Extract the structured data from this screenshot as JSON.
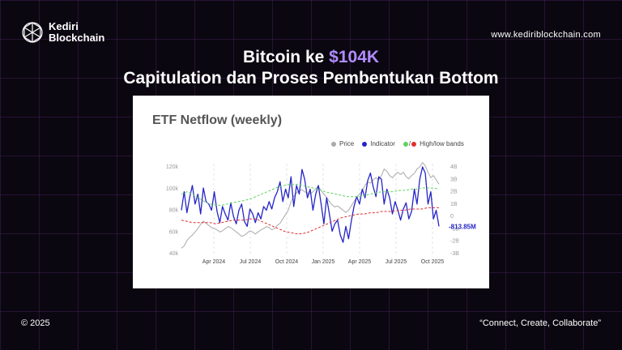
{
  "brand": {
    "name_line1": "Kediri",
    "name_line2": "Blockchain",
    "logo_icon": "network-sphere-icon",
    "url": "www.kediriblockchain.com"
  },
  "headline": {
    "line1_prefix": "Bitcoin ke ",
    "line1_accent": "$104K",
    "line2": "Capitulation dan Proses Pembentukan Bottom",
    "accent_color": "#b18cff"
  },
  "chart_card": {
    "title": "ETF Netflow (weekly)",
    "legend": [
      {
        "label": "Price",
        "color": "#aaaaaa"
      },
      {
        "label": "Indicator",
        "color": "#2525c8"
      },
      {
        "label": "High/low bands",
        "color": "#5fd35f",
        "color2": "#e03030",
        "separator": "/"
      }
    ],
    "last_value_label": "-813.85M"
  },
  "chart_data": {
    "type": "line",
    "x_ticks": [
      "Apr 2024",
      "Jul 2024",
      "Oct 2024",
      "Jan 2025",
      "Apr 2025",
      "Jul 2025",
      "Oct 2025"
    ],
    "y_left_ticks": [
      "120k",
      "100k",
      "80k",
      "60k",
      "40k"
    ],
    "y_left_range": [
      40000,
      120000
    ],
    "y_right_ticks": [
      "4B",
      "3B",
      "2B",
      "1B",
      "0",
      "-1B",
      "-2B",
      "-3B"
    ],
    "y_right_range": [
      -3,
      4
    ],
    "series": [
      {
        "name": "Price",
        "color": "#aaaaaa",
        "axis": "left",
        "values": [
          45000,
          47000,
          52000,
          55000,
          57000,
          60000,
          63000,
          67000,
          70000,
          68000,
          66000,
          64000,
          63000,
          62000,
          60000,
          61000,
          63000,
          65000,
          64000,
          62000,
          60000,
          58000,
          56000,
          57000,
          59000,
          61000,
          60000,
          58000,
          60000,
          62000,
          63000,
          65000,
          64000,
          62000,
          63000,
          66000,
          68000,
          72000,
          76000,
          80000,
          88000,
          93000,
          96000,
          98000,
          99000,
          97000,
          96000,
          95000,
          97000,
          100000,
          102000,
          98000,
          95000,
          92000,
          88000,
          85000,
          83000,
          84000,
          82000,
          80000,
          78000,
          80000,
          84000,
          88000,
          92000,
          95000,
          98000,
          103000,
          106000,
          105000,
          108000,
          110000,
          108000,
          112000,
          118000,
          116000,
          112000,
          110000,
          113000,
          115000,
          113000,
          115000,
          111000,
          109000,
          112000,
          114000,
          118000,
          120000,
          124000,
          121000,
          115000,
          110000,
          112000,
          108000,
          104000
        ]
      },
      {
        "name": "Indicator",
        "color": "#2525c8",
        "axis": "right",
        "values": [
          0.5,
          2.0,
          0.3,
          1.5,
          2.5,
          1.0,
          1.8,
          0.2,
          2.3,
          1.2,
          1.0,
          0.5,
          2.0,
          0.4,
          -0.5,
          0.8,
          0.2,
          -0.3,
          1.1,
          0.0,
          -0.6,
          0.5,
          1.0,
          -0.4,
          -0.8,
          0.6,
          0.2,
          -0.5,
          0.3,
          -0.2,
          0.8,
          0.5,
          1.2,
          0.6,
          1.5,
          2.0,
          2.8,
          1.2,
          2.2,
          1.5,
          3.2,
          0.8,
          2.5,
          1.8,
          3.8,
          3.0,
          1.5,
          2.2,
          0.5,
          1.8,
          2.5,
          1.0,
          -0.6,
          1.5,
          0.2,
          -1.2,
          -0.6,
          -0.3,
          -1.5,
          -2.1,
          -0.8,
          -1.8,
          -0.4,
          0.8,
          1.6,
          1.0,
          2.2,
          1.5,
          2.9,
          3.5,
          2.4,
          1.6,
          3.2,
          3.0,
          1.0,
          2.2,
          1.5,
          0.2,
          1.2,
          0.5,
          -0.3,
          0.6,
          1.1,
          -0.2,
          0.4,
          2.2,
          1.0,
          3.0,
          4.0,
          3.5,
          1.0,
          2.0,
          -0.2,
          0.5,
          -0.8
        ]
      },
      {
        "name": "High band",
        "color": "#5fd35f",
        "axis": "right",
        "values": [
          1.8,
          2.0,
          1.8,
          1.5,
          1.2,
          1.0,
          0.9,
          0.9,
          1.0,
          1.1,
          1.2,
          1.3,
          1.4,
          1.6,
          1.8,
          2.0,
          2.2,
          2.4,
          2.5,
          2.6,
          2.6,
          2.5,
          2.4,
          2.3,
          2.2,
          2.0,
          1.9,
          1.8,
          1.7,
          1.6,
          1.6,
          1.6,
          1.7,
          1.8,
          1.9,
          2.0,
          2.0,
          2.0,
          2.1,
          2.1,
          2.2,
          2.2,
          2.3,
          2.3,
          2.3,
          2.2
        ]
      },
      {
        "name": "Low band",
        "color": "#e03030",
        "axis": "right",
        "values": [
          -0.3,
          -0.4,
          -0.5,
          -0.5,
          -0.5,
          -0.5,
          -0.6,
          -0.5,
          -0.4,
          -0.3,
          -0.3,
          -0.3,
          -0.2,
          -0.2,
          -0.4,
          -0.6,
          -0.8,
          -1.0,
          -1.2,
          -1.3,
          -1.4,
          -1.4,
          -1.3,
          -1.1,
          -0.9,
          -0.7,
          -0.5,
          -0.3,
          -0.1,
          0.0,
          0.1,
          0.2,
          0.2,
          0.3,
          0.3,
          0.4,
          0.4,
          0.4,
          0.5,
          0.5,
          0.6,
          0.6,
          0.6,
          0.7,
          0.7,
          0.7
        ]
      }
    ]
  },
  "footer": {
    "copyright": "© 2025",
    "tagline": "“Connect, Create, Collaborate”"
  }
}
